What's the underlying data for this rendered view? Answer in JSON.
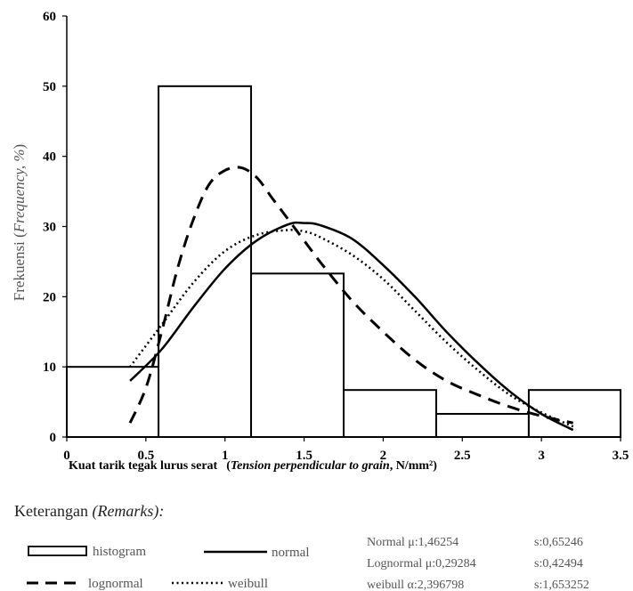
{
  "chart_data": {
    "type": "bar",
    "title": "",
    "xlabel": {
      "main": "Kuat tarik tegak lurus serat",
      "en_prefix": "(",
      "en_italic": "Tension perpendicular to grain",
      "en_suffix": ", N/mm²)"
    },
    "ylabel": {
      "main": "Frekuensi (",
      "en_italic": "Frequency, %",
      "suffix": ")"
    },
    "xlim": [
      0,
      3.5
    ],
    "ylim": [
      0,
      60
    ],
    "xticks": [
      "0",
      "0.5",
      "1",
      "1.5",
      "2",
      "2.5",
      "3",
      "3.5"
    ],
    "xtick_values": [
      0,
      0.5,
      1,
      1.5,
      2,
      2.5,
      3,
      3.5
    ],
    "yticks": [
      "0",
      "10",
      "20",
      "30",
      "40",
      "50",
      "60"
    ],
    "ytick_values": [
      0,
      10,
      20,
      30,
      40,
      50,
      60
    ],
    "histogram": {
      "name": "histogram",
      "bins": [
        {
          "start": 0,
          "end": 0.58,
          "value": 10
        },
        {
          "start": 0.58,
          "end": 1.165,
          "value": 50
        },
        {
          "start": 1.165,
          "end": 1.75,
          "value": 23.3
        },
        {
          "start": 1.75,
          "end": 2.335,
          "value": 6.7
        },
        {
          "start": 2.335,
          "end": 2.92,
          "value": 3.3
        },
        {
          "start": 2.92,
          "end": 3.5,
          "value": 6.7
        }
      ]
    },
    "series": [
      {
        "name": "normal",
        "style": "solid",
        "x": [
          0.4,
          0.6,
          0.8,
          1.0,
          1.2,
          1.4,
          1.5,
          1.6,
          1.8,
          2.0,
          2.2,
          2.4,
          2.6,
          2.8,
          3.0,
          3.2
        ],
        "values": [
          8,
          12.5,
          18.5,
          24,
          28,
          30.3,
          30.5,
          30.2,
          28.3,
          24.5,
          20,
          15,
          10.5,
          6.5,
          3.3,
          1
        ]
      },
      {
        "name": "lognormal",
        "style": "dashed",
        "x": [
          0.4,
          0.5,
          0.6,
          0.7,
          0.8,
          0.9,
          1.0,
          1.1,
          1.2,
          1.3,
          1.4,
          1.5,
          1.6,
          1.8,
          2.0,
          2.2,
          2.4,
          2.6,
          2.8,
          3.0,
          3.2
        ],
        "values": [
          2,
          7,
          15,
          24,
          31,
          36,
          38,
          38.4,
          37,
          34,
          31,
          28,
          25,
          19.5,
          15,
          11,
          8,
          6,
          4.3,
          3,
          2
        ]
      },
      {
        "name": "weibull",
        "style": "dotted",
        "x": [
          0.4,
          0.6,
          0.8,
          1.0,
          1.2,
          1.4,
          1.5,
          1.6,
          1.8,
          2.0,
          2.2,
          2.4,
          2.6,
          2.8,
          3.0,
          3.2
        ],
        "values": [
          10,
          16,
          22,
          26.5,
          28.8,
          29.5,
          29.3,
          28.5,
          26,
          22.5,
          18,
          13.5,
          9.5,
          6,
          3.5,
          1.5
        ]
      }
    ]
  },
  "remarks": {
    "label": "Keterangan ",
    "label_italic": "(Remarks):",
    "legend": {
      "histogram": "histogram",
      "normal": "normal",
      "lognormal": "lognormal",
      "weibull": "weibull"
    },
    "params": [
      {
        "left": "Normal μ:1,46254",
        "right": "s:0,65246"
      },
      {
        "left": "Lognormal μ:0,29284",
        "right": "s:0,42494"
      },
      {
        "left": "weibull α:2,396798",
        "right": "s:1,653252"
      }
    ]
  }
}
